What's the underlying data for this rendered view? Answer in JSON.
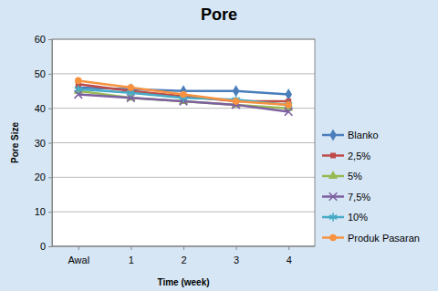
{
  "chart_data": {
    "type": "line",
    "title": "Pore",
    "x_label": "Time (week)",
    "y_label": "Pore Size",
    "categories": [
      "Awal",
      "1",
      "2",
      "3",
      "4"
    ],
    "ylim": [
      0,
      60
    ],
    "yticks": [
      0,
      10,
      20,
      30,
      40,
      50,
      60
    ],
    "grid": true,
    "legend": "right",
    "series": [
      {
        "name": "Blanko",
        "color": "#4a7ebb",
        "marker": "diamond",
        "values": [
          46,
          45.5,
          45,
          45,
          44
        ]
      },
      {
        "name": "2,5%",
        "color": "#be4b48",
        "marker": "square",
        "values": [
          47,
          45,
          43.5,
          42,
          42
        ]
      },
      {
        "name": "5%",
        "color": "#98b954",
        "marker": "triangle",
        "values": [
          45,
          43,
          42,
          41,
          40
        ]
      },
      {
        "name": "7,5%",
        "color": "#7d60a0",
        "marker": "x",
        "values": [
          44,
          43,
          42,
          41,
          39
        ]
      },
      {
        "name": "10%",
        "color": "#46aac5",
        "marker": "star",
        "values": [
          45.5,
          44.5,
          43,
          42.5,
          41
        ]
      },
      {
        "name": "Produk Pasaran",
        "color": "#f69240",
        "marker": "circle",
        "values": [
          48,
          46,
          44,
          42,
          41
        ]
      }
    ]
  }
}
